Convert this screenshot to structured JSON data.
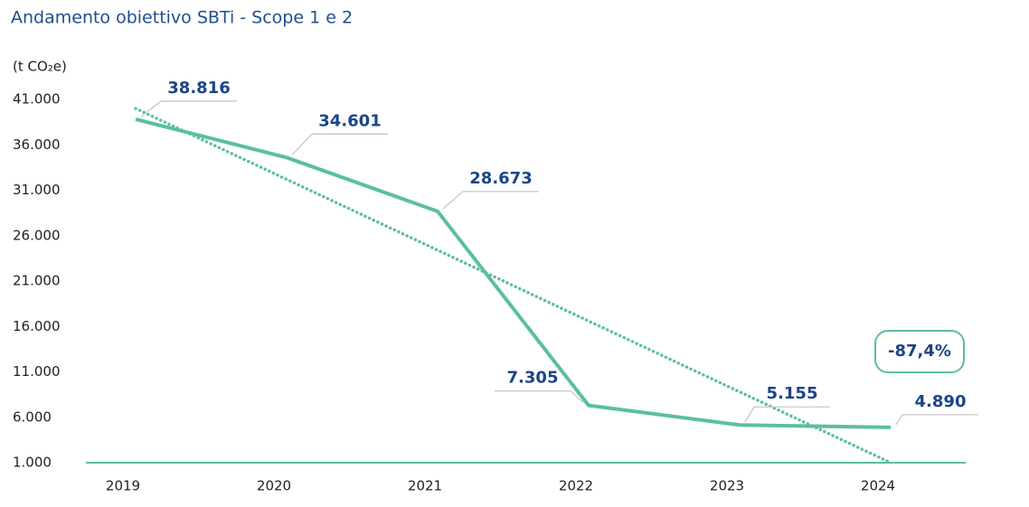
{
  "chart_data": {
    "type": "line",
    "title": "Andamento obiettivo SBTi - Scope 1 e 2",
    "y_label": "(t CO₂e)",
    "categories": [
      "2019",
      "2020",
      "2021",
      "2022",
      "2023",
      "2024"
    ],
    "series": [
      {
        "color": "#5bbf9e",
        "style": "solid",
        "values": [
          38816,
          34601,
          28673,
          7305,
          5155,
          4890
        ],
        "value_labels": [
          "38.816",
          "34.601",
          "28.673",
          "7.305",
          "5.155",
          "4.890"
        ]
      },
      {
        "color": "#5bbf9e",
        "style": "dotted",
        "values": [
          40000,
          32200,
          24400,
          16600,
          8800,
          1000
        ]
      }
    ],
    "annotation": "-87,4%",
    "ylim": [
      1000,
      41000
    ],
    "yticks": [
      {
        "value": 1000,
        "label": "1.000"
      },
      {
        "value": 6000,
        "label": "6.000"
      },
      {
        "value": 11000,
        "label": "11.000"
      },
      {
        "value": 16000,
        "label": "16.000"
      },
      {
        "value": 21000,
        "label": "21.000"
      },
      {
        "value": 26000,
        "label": "26.000"
      },
      {
        "value": 31000,
        "label": "31.000"
      },
      {
        "value": 36000,
        "label": "36.000"
      },
      {
        "value": 41000,
        "label": "41.000"
      }
    ]
  }
}
